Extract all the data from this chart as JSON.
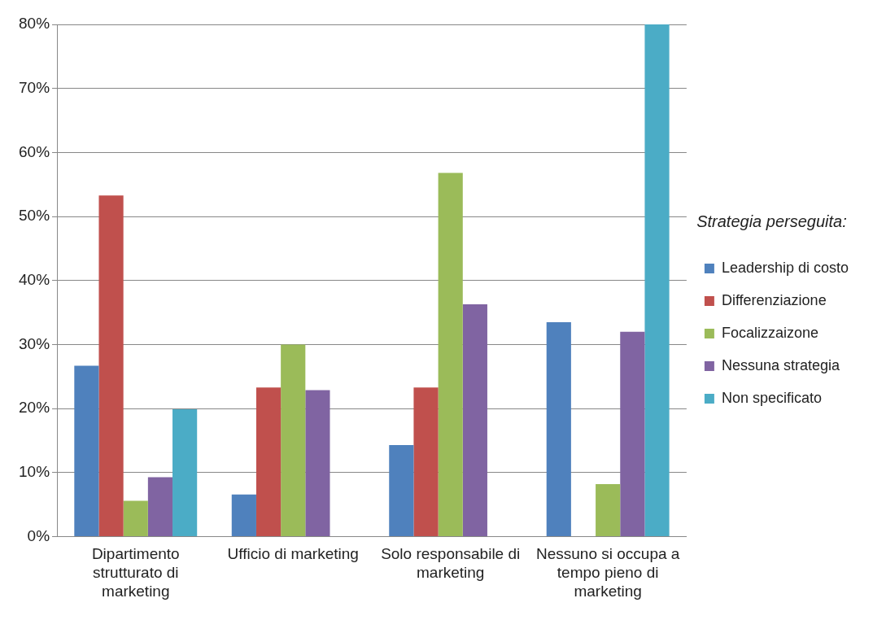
{
  "chart_data": {
    "type": "bar",
    "categories": [
      "Dipartimento strutturato di marketing",
      "Ufficio di marketing",
      "Solo responsabile di marketing",
      "Nessuno si occupa a tempo pieno di marketing"
    ],
    "series": [
      {
        "name": "Leadership di costo",
        "color": "#4f81bd",
        "values": [
          26.7,
          6.6,
          14.3,
          33.5
        ]
      },
      {
        "name": "Differenziazione",
        "color": "#c0504d",
        "values": [
          53.3,
          23.3,
          23.3,
          0
        ]
      },
      {
        "name": "Focalizzaizone",
        "color": "#9bbb59",
        "values": [
          5.6,
          30.0,
          56.8,
          8.2
        ]
      },
      {
        "name": "Nessuna strategia",
        "color": "#8064a2",
        "values": [
          9.3,
          22.9,
          36.3,
          32.0
        ]
      },
      {
        "name": "Non specificato",
        "color": "#4bacc6",
        "values": [
          19.9,
          0,
          0,
          80
        ]
      }
    ],
    "legend_title": "Strategia perseguita:",
    "legend": "right",
    "grid": "y",
    "ylim": [
      0,
      80
    ],
    "yticks": [
      {
        "value": 0,
        "label": "0%"
      },
      {
        "value": 10,
        "label": "10%"
      },
      {
        "value": 20,
        "label": "20%"
      },
      {
        "value": 30,
        "label": "30%"
      },
      {
        "value": 40,
        "label": "40%"
      },
      {
        "value": 50,
        "label": "50%"
      },
      {
        "value": 60,
        "label": "60%"
      },
      {
        "value": 70,
        "label": "70%"
      },
      {
        "value": 80,
        "label": "80%"
      }
    ]
  }
}
